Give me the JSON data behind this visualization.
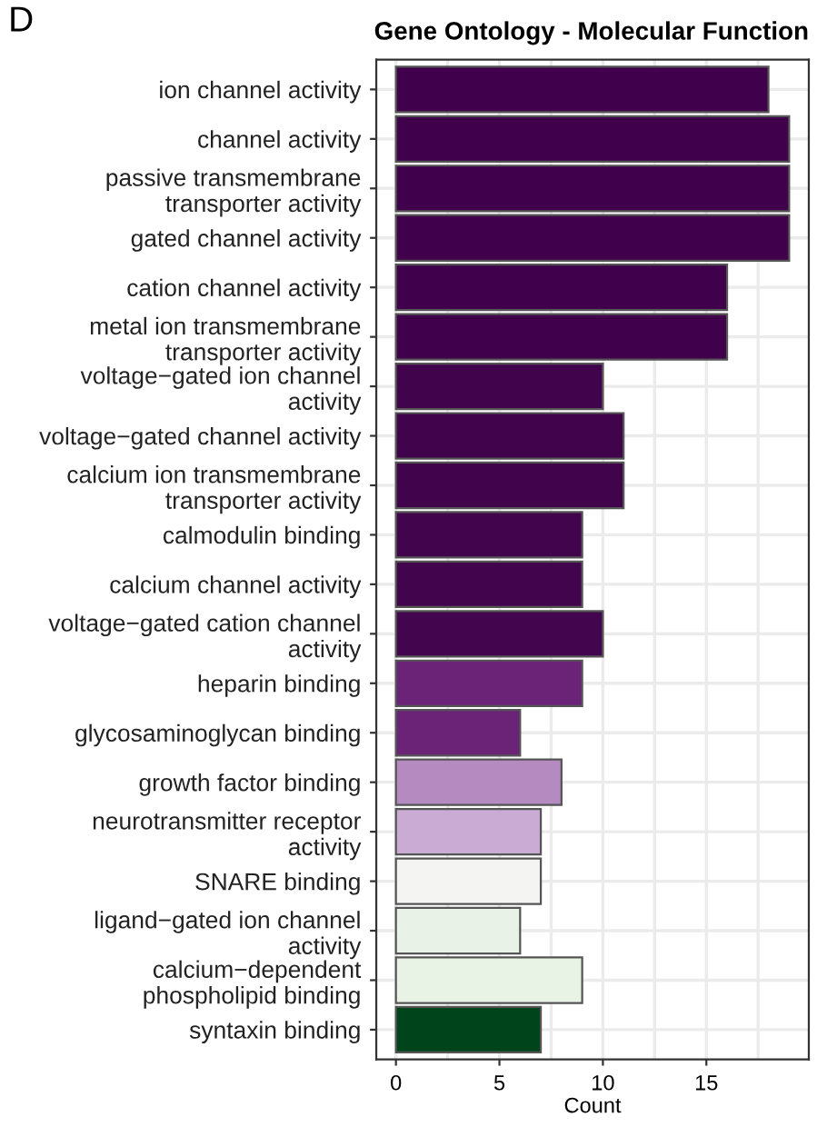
{
  "chart_data": {
    "type": "bar",
    "orientation": "horizontal",
    "title": "Gene Ontology - Molecular Function",
    "xlabel": "Count",
    "annotations": [
      "D"
    ],
    "categories": [
      "ion channel activity",
      "channel activity",
      "passive transmembrane\ntransporter activity",
      "gated channel activity",
      "cation channel activity",
      "metal ion transmembrane\ntransporter activity",
      "voltage−gated ion channel\nactivity",
      "voltage−gated channel activity",
      "calcium ion transmembrane\ntransporter activity",
      "calmodulin binding",
      "calcium channel activity",
      "voltage−gated cation channel\nactivity",
      "heparin binding",
      "glycosaminoglycan binding",
      "growth factor binding",
      "neurotransmitter receptor\nactivity",
      "SNARE binding",
      "ligand−gated ion channel\nactivity",
      "calcium−dependent\nphospholipid binding",
      "syntaxin binding"
    ],
    "values": [
      18,
      19,
      19,
      19,
      16,
      16,
      10,
      11,
      11,
      9,
      9,
      10,
      9,
      6,
      8,
      7,
      7,
      6,
      9,
      7
    ],
    "colors": [
      "#40004b",
      "#40004b",
      "#40004b",
      "#40004b",
      "#40004b",
      "#40004b",
      "#41034c",
      "#41034c",
      "#41034c",
      "#42054d",
      "#42054d",
      "#43064e",
      "#6a2377",
      "#6a2377",
      "#b48ac0",
      "#c9abd4",
      "#f4f4f2",
      "#e8f2e6",
      "#e8f3e5",
      "#00441b"
    ],
    "xlim": [
      -0.95,
      19.95
    ],
    "xticks": [
      0,
      5,
      10,
      15
    ],
    "grid": true
  }
}
